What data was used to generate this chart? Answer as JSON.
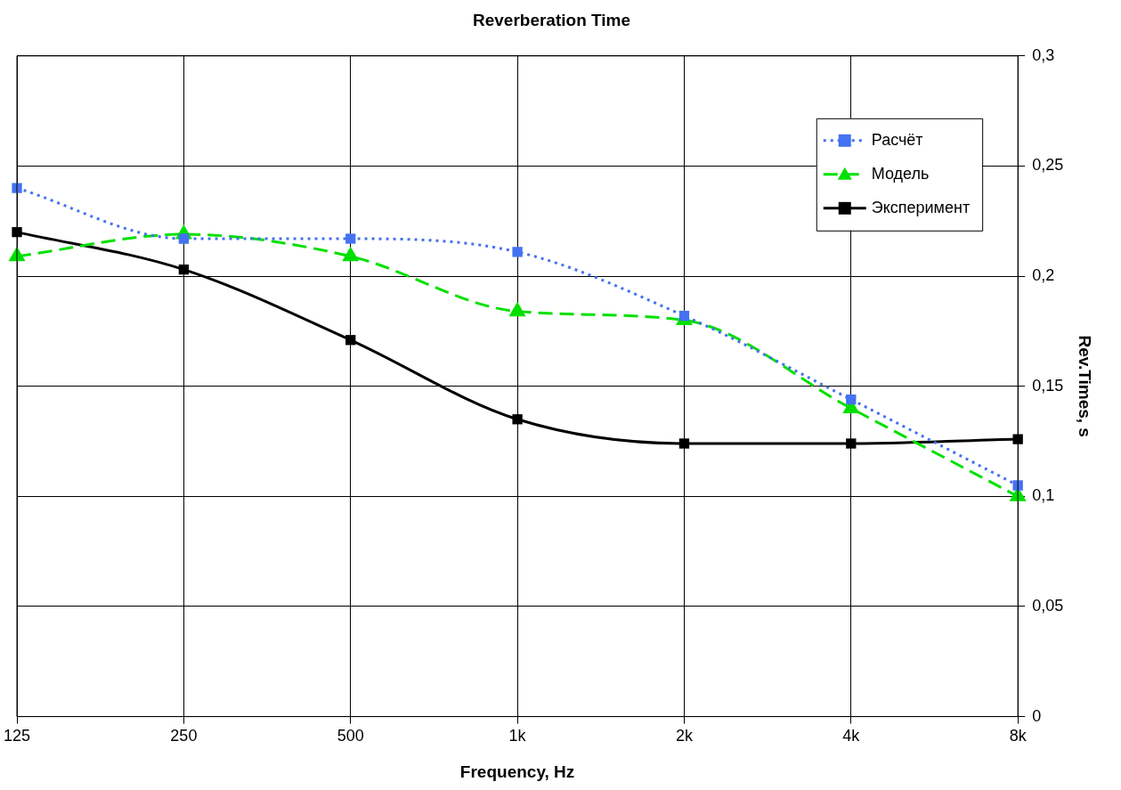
{
  "chart_data": {
    "type": "line",
    "title": "Reverberation Time",
    "xlabel": "Frequency, Hz",
    "ylabel": "Rev.Times, s",
    "categories": [
      "125",
      "250",
      "500",
      "1k",
      "2k",
      "4k",
      "8k"
    ],
    "series": [
      {
        "name": "Расчёт",
        "color": "#4472f0",
        "marker": "square",
        "line_style": "dotted",
        "values": [
          0.24,
          0.217,
          0.217,
          0.211,
          0.182,
          0.144,
          0.105
        ]
      },
      {
        "name": "Модель",
        "color": "#00e000",
        "marker": "triangle",
        "line_style": "dashed",
        "values": [
          0.209,
          0.219,
          0.209,
          0.184,
          0.18,
          0.14,
          0.1
        ]
      },
      {
        "name": "Эксперимент",
        "color": "#000000",
        "marker": "square",
        "line_style": "solid",
        "values": [
          0.22,
          0.203,
          0.171,
          0.135,
          0.124,
          0.124,
          0.126
        ]
      }
    ],
    "ylim": [
      0,
      0.3
    ],
    "yticks": [
      {
        "value": 0,
        "label": "0"
      },
      {
        "value": 0.05,
        "label": "0,05"
      },
      {
        "value": 0.1,
        "label": "0,1"
      },
      {
        "value": 0.15,
        "label": "0,15"
      },
      {
        "value": 0.2,
        "label": "0,2"
      },
      {
        "value": 0.25,
        "label": "0,25"
      },
      {
        "value": 0.3,
        "label": "0,3"
      }
    ],
    "grid": true,
    "legend": "top right"
  }
}
